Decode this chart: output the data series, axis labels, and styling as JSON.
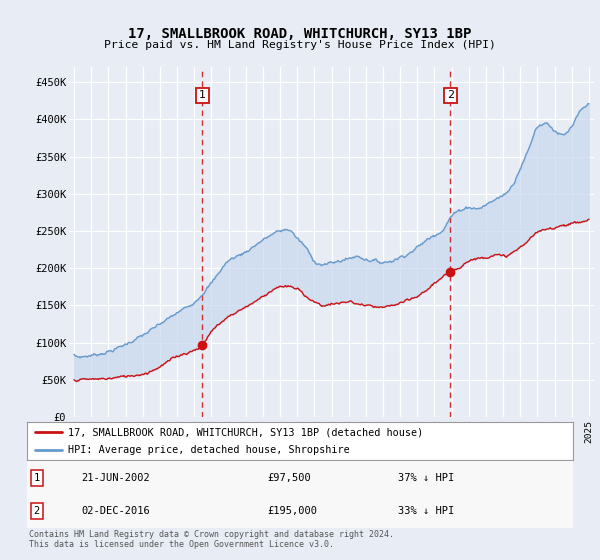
{
  "title": "17, SMALLBROOK ROAD, WHITCHURCH, SY13 1BP",
  "subtitle": "Price paid vs. HM Land Registry's House Price Index (HPI)",
  "bg_color": "#e8edf5",
  "plot_bg_color": "#e8edf5",
  "grid_color": "#ffffff",
  "hpi_color": "#6699cc",
  "price_color": "#cc1111",
  "dashed_color": "#cc1111",
  "fill_color": "#c8d8ee",
  "sale1_date": 2002.47,
  "sale1_price": 97500,
  "sale2_date": 2016.92,
  "sale2_price": 195000,
  "ylim": [
    0,
    470000
  ],
  "xlim_start": 1994.7,
  "xlim_end": 2025.3,
  "footer_line1": "Contains HM Land Registry data © Crown copyright and database right 2024.",
  "footer_line2": "This data is licensed under the Open Government Licence v3.0.",
  "legend_line1": "17, SMALLBROOK ROAD, WHITCHURCH, SY13 1BP (detached house)",
  "legend_line2": "HPI: Average price, detached house, Shropshire",
  "sale1_text": "21-JUN-2002",
  "sale1_pct": "37% ↓ HPI",
  "sale2_text": "02-DEC-2016",
  "sale2_pct": "33% ↓ HPI"
}
